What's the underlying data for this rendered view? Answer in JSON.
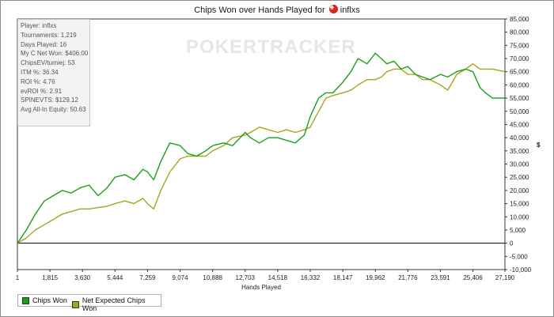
{
  "title": {
    "prefix": "Chips Won over Hands Played for",
    "player": "inflxs",
    "suit_icon": "spade-icon"
  },
  "watermark": "POKERTRACKER",
  "stats_lines": [
    "Player: inflxs",
    "Tournaments: 1,219",
    "Days Played: 16",
    "My C Net Won: $406.00",
    "ChipsEV/turniej: 53",
    "ITM %: 36.34",
    "ROI %: 4.76",
    "evROI %: 2.91",
    "SPINEVTS: $129.12",
    "Avg All-In Equity: 50.63"
  ],
  "legend": [
    {
      "label": "Chips Won",
      "color": "#17a117"
    },
    {
      "label": "Net Expected Chips Won",
      "color": "#a8a51c"
    }
  ],
  "chart_data": {
    "type": "line",
    "title": "Chips Won over Hands Played for inflxs",
    "xlabel": "Hands Played",
    "ylabel": "$",
    "xlim": [
      1,
      27190
    ],
    "ylim": [
      -10000,
      85000
    ],
    "x_ticks": [
      "1",
      "1,815",
      "3,630",
      "5,444",
      "7,259",
      "9,074",
      "10,888",
      "12,703",
      "14,518",
      "16,332",
      "18,147",
      "19,962",
      "21,776",
      "23,591",
      "25,406",
      "27,190"
    ],
    "y_ticks": [
      "-10,000",
      "-5,000",
      "0",
      "5,000",
      "10,000",
      "15,000",
      "20,000",
      "25,000",
      "30,000",
      "35,000",
      "40,000",
      "45,000",
      "50,000",
      "55,000",
      "60,000",
      "65,000",
      "70,000",
      "75,000",
      "80,000",
      "85,000"
    ],
    "grid": false,
    "legend_position": "bottom-left",
    "series": [
      {
        "name": "Chips Won",
        "color": "#17a117",
        "x": [
          1,
          500,
          1000,
          1500,
          2000,
          2500,
          3000,
          3500,
          4000,
          4500,
          5000,
          5444,
          6000,
          6500,
          7000,
          7259,
          7600,
          8000,
          8500,
          9074,
          9500,
          10000,
          10500,
          10888,
          11500,
          12000,
          12703,
          13000,
          13500,
          14000,
          14518,
          15000,
          15500,
          16000,
          16332,
          16800,
          17200,
          17600,
          18147,
          18600,
          19000,
          19500,
          19962,
          20300,
          20600,
          21000,
          21400,
          21776,
          22200,
          22600,
          23000,
          23591,
          24000,
          24500,
          25000,
          25406,
          25800,
          26100,
          26500,
          27190
        ],
        "values": [
          0,
          5000,
          11000,
          16000,
          18000,
          20000,
          19000,
          21000,
          22000,
          18000,
          21000,
          25000,
          26000,
          24000,
          28000,
          27000,
          24000,
          31000,
          38000,
          37000,
          34000,
          33000,
          35000,
          37000,
          38000,
          37000,
          42000,
          40000,
          38000,
          40000,
          40000,
          39000,
          38000,
          41000,
          48000,
          55000,
          57000,
          57000,
          61000,
          65000,
          70000,
          68000,
          72000,
          70000,
          68000,
          69000,
          66000,
          67000,
          64000,
          63000,
          62000,
          64000,
          63000,
          65000,
          66000,
          65000,
          59000,
          57000,
          55000,
          55000
        ]
      },
      {
        "name": "Net Expected Chips Won",
        "color": "#a8a51c",
        "x": [
          1,
          500,
          1000,
          1500,
          2000,
          2500,
          3000,
          3500,
          4000,
          4500,
          5000,
          5444,
          6000,
          6500,
          7000,
          7259,
          7600,
          8000,
          8500,
          9074,
          9500,
          10000,
          10500,
          10888,
          11500,
          12000,
          12703,
          13000,
          13500,
          14000,
          14518,
          15000,
          15500,
          16000,
          16332,
          16800,
          17200,
          17600,
          18147,
          18600,
          19000,
          19500,
          19962,
          20300,
          20600,
          21000,
          21400,
          21776,
          22200,
          22600,
          23000,
          23591,
          24000,
          24500,
          25000,
          25406,
          25800,
          26100,
          26500,
          27190
        ],
        "values": [
          0,
          2000,
          5000,
          7000,
          9000,
          11000,
          12000,
          13000,
          13000,
          13500,
          14000,
          15000,
          16000,
          15000,
          17000,
          15000,
          13000,
          20000,
          27000,
          32000,
          33000,
          33000,
          33000,
          35000,
          37000,
          40000,
          41000,
          42000,
          44000,
          43000,
          42000,
          43000,
          42000,
          43000,
          44000,
          50000,
          55000,
          56000,
          57000,
          58000,
          60000,
          62000,
          62000,
          63000,
          65000,
          66000,
          66000,
          64000,
          64000,
          62000,
          62000,
          60000,
          58000,
          64000,
          66000,
          68000,
          66000,
          66000,
          66000,
          65000
        ]
      }
    ]
  }
}
